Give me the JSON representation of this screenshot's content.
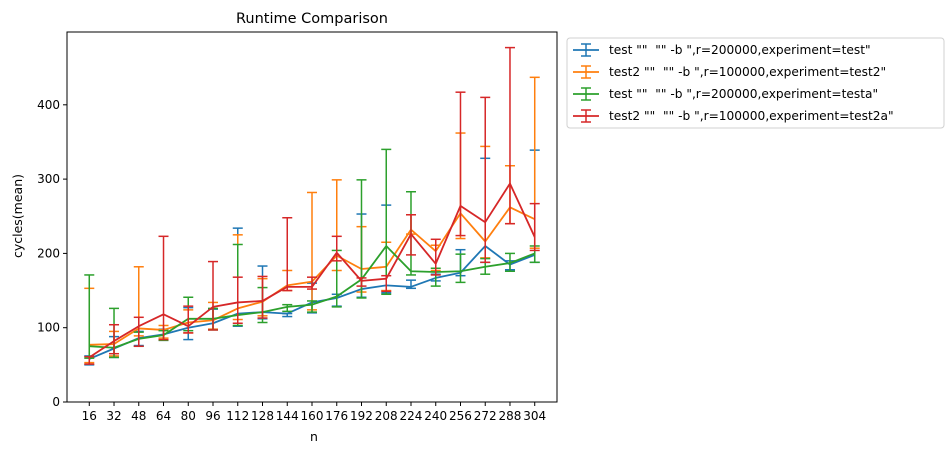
{
  "chart_data": {
    "type": "line",
    "title": "Runtime Comparison",
    "xlabel": "n",
    "ylabel": "cycles(mean)",
    "x": [
      16,
      32,
      48,
      64,
      80,
      96,
      112,
      128,
      144,
      160,
      176,
      192,
      208,
      224,
      240,
      256,
      272,
      288,
      304
    ],
    "ylim": [
      0,
      498
    ],
    "yticks": [
      0,
      100,
      200,
      300,
      400
    ],
    "grid": false,
    "legend_position": "outside-top-right",
    "series": [
      {
        "name": "test \"\"  \"\" -b \",r=200000,experiment=test\"",
        "color": "#1f77b4",
        "values": [
          58,
          72,
          86,
          91,
          100,
          106,
          119,
          121,
          119,
          134,
          140,
          152,
          157,
          155,
          167,
          174,
          210,
          185,
          198
        ],
        "err_low": [
          50,
          60,
          76,
          83,
          84,
          98,
          102,
          112,
          115,
          120,
          129,
          141,
          147,
          153,
          163,
          170,
          188,
          178,
          188
        ],
        "err_high": [
          62,
          88,
          95,
          98,
          127,
          125,
          234,
          183,
          119,
          160,
          145,
          253,
          265,
          164,
          172,
          205,
          328,
          190,
          339
        ]
      },
      {
        "name": "test2 \"\"  \"\" -b \",r=100000,experiment=test2\"",
        "color": "#ff7f0e",
        "values": [
          77,
          78,
          99,
          97,
          107,
          110,
          126,
          135,
          157,
          162,
          197,
          179,
          182,
          232,
          203,
          254,
          216,
          262,
          246
        ],
        "err_low": [
          53,
          62,
          89,
          86,
          93,
          98,
          111,
          116,
          150,
          124,
          177,
          148,
          150,
          226,
          177,
          220,
          194,
          240,
          207
        ],
        "err_high": [
          153,
          95,
          182,
          103,
          124,
          134,
          225,
          166,
          177,
          282,
          299,
          236,
          215,
          252,
          211,
          362,
          344,
          318,
          437
        ]
      },
      {
        "name": "test \"\"  \"\" -b \",r=200000,experiment=testa\"",
        "color": "#2ca02c",
        "values": [
          75,
          73,
          85,
          90,
          112,
          112,
          117,
          121,
          128,
          131,
          142,
          165,
          210,
          176,
          175,
          176,
          182,
          187,
          200
        ],
        "err_low": [
          59,
          60,
          75,
          83,
          96,
          97,
          103,
          107,
          122,
          121,
          128,
          140,
          145,
          171,
          156,
          161,
          172,
          176,
          188
        ],
        "err_high": [
          171,
          126,
          94,
          96,
          141,
          126,
          212,
          154,
          131,
          136,
          204,
          299,
          340,
          283,
          180,
          199,
          193,
          200,
          210
        ]
      },
      {
        "name": "test2 \"\"  \"\" -b \",r=100000,experiment=test2a\"",
        "color": "#d62728",
        "values": [
          60,
          82,
          102,
          118,
          102,
          128,
          134,
          136,
          155,
          155,
          201,
          163,
          166,
          226,
          186,
          264,
          242,
          294,
          222
        ],
        "err_low": [
          51,
          65,
          75,
          84,
          93,
          97,
          106,
          113,
          150,
          152,
          190,
          156,
          149,
          198,
          171,
          224,
          188,
          240,
          204
        ],
        "err_high": [
          61,
          104,
          114,
          223,
          129,
          189,
          168,
          169,
          248,
          168,
          223,
          167,
          170,
          252,
          219,
          417,
          410,
          477,
          267
        ]
      }
    ]
  }
}
